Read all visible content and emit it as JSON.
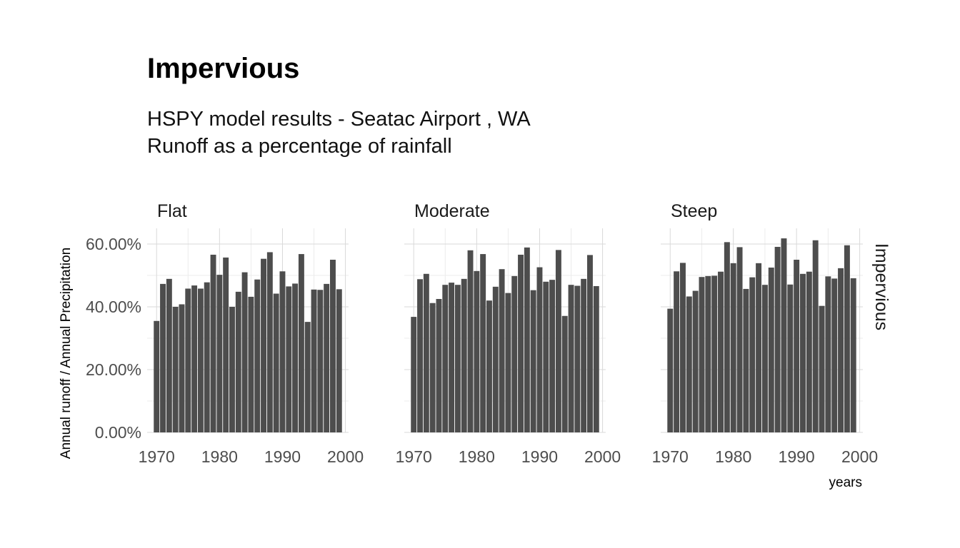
{
  "chart_data": {
    "type": "bar",
    "title": "Impervious",
    "subtitle_lines": [
      "HSPY model results -  Seatac Airport , WA",
      "Runoff as a percentage of rainfall"
    ],
    "xlabel": "years",
    "ylabel": "Annual runoff / Annual Precipitation",
    "strip_right": "Impervious",
    "x": [
      1970,
      1971,
      1972,
      1973,
      1974,
      1975,
      1976,
      1977,
      1978,
      1979,
      1980,
      1981,
      1982,
      1983,
      1984,
      1985,
      1986,
      1987,
      1988,
      1989,
      1990,
      1991,
      1992,
      1993,
      1994,
      1995,
      1996,
      1997,
      1998,
      1999
    ],
    "xlim": [
      1968.5,
      2000.5
    ],
    "x_ticks": [
      1970,
      1980,
      1990,
      2000
    ],
    "x_tick_labels": [
      "1970",
      "1980",
      "1990",
      "2000"
    ],
    "ylim": [
      0,
      0.65
    ],
    "y_ticks": [
      0,
      0.2,
      0.4,
      0.6
    ],
    "y_tick_labels": [
      "0.00%",
      "20.00%",
      "40.00%",
      "60.00%"
    ],
    "grid": true,
    "series": [
      {
        "name": "Flat",
        "values": [
          0.355,
          0.473,
          0.489,
          0.4,
          0.408,
          0.458,
          0.468,
          0.458,
          0.478,
          0.566,
          0.502,
          0.557,
          0.4,
          0.448,
          0.51,
          0.432,
          0.487,
          0.553,
          0.574,
          0.442,
          0.513,
          0.465,
          0.474,
          0.568,
          0.352,
          0.455,
          0.454,
          0.473,
          0.55,
          0.456
        ]
      },
      {
        "name": "Moderate",
        "values": [
          0.368,
          0.488,
          0.505,
          0.412,
          0.425,
          0.47,
          0.477,
          0.47,
          0.489,
          0.58,
          0.514,
          0.568,
          0.42,
          0.464,
          0.52,
          0.444,
          0.498,
          0.566,
          0.589,
          0.453,
          0.526,
          0.48,
          0.486,
          0.581,
          0.371,
          0.47,
          0.467,
          0.489,
          0.565,
          0.466
        ]
      },
      {
        "name": "Steep",
        "values": [
          0.394,
          0.513,
          0.54,
          0.433,
          0.451,
          0.495,
          0.498,
          0.499,
          0.512,
          0.606,
          0.539,
          0.59,
          0.457,
          0.494,
          0.539,
          0.47,
          0.525,
          0.591,
          0.618,
          0.471,
          0.55,
          0.505,
          0.512,
          0.612,
          0.403,
          0.497,
          0.49,
          0.523,
          0.596,
          0.491
        ]
      }
    ]
  }
}
